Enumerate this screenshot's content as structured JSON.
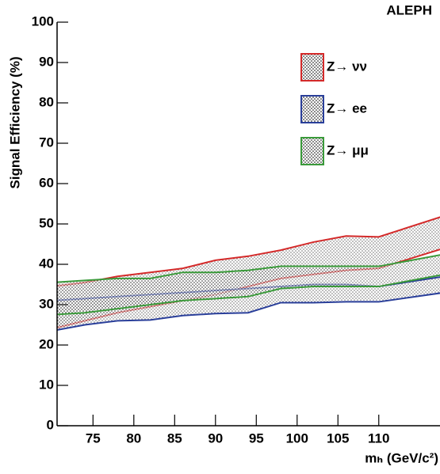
{
  "chart_data": {
    "type": "band",
    "title": "ALEPH",
    "x_label": "mₕ (GeV/c²)",
    "y_label": "Signal Efficiency (%)",
    "x": [
      70,
      74,
      78,
      82,
      86,
      90,
      94,
      98,
      102,
      106,
      110,
      118
    ],
    "series": [
      {
        "name": "Z→ νν",
        "color": "#d42a2a",
        "upper": [
          34.5,
          35.5,
          37,
          38,
          39,
          41,
          42,
          43.5,
          45.5,
          47,
          46.8,
          52
        ],
        "lower": [
          24,
          26,
          28,
          29.5,
          31,
          32.5,
          34.5,
          36.5,
          37.5,
          38.5,
          39,
          44
        ]
      },
      {
        "name": "Z→ ee",
        "color": "#2a3f9a",
        "upper": [
          31,
          31.5,
          32,
          32.5,
          33,
          33.5,
          34,
          34.5,
          35,
          35,
          34.5,
          37
        ],
        "lower": [
          23.5,
          25,
          26,
          26.2,
          27.3,
          27.8,
          28,
          30.5,
          30.5,
          30.7,
          30.7,
          33
        ]
      },
      {
        "name": "Z→ μμ",
        "color": "#3a9a3a",
        "upper": [
          35.5,
          36,
          36.5,
          36.5,
          38,
          38,
          38.5,
          39.5,
          39.5,
          39.5,
          39.5,
          42.5
        ],
        "lower": [
          27.5,
          28,
          29,
          30,
          31,
          31.5,
          32,
          34,
          34.5,
          34.5,
          34.5,
          37.5
        ]
      }
    ],
    "xlim": [
      70.6,
      117.5
    ],
    "ylim": [
      0,
      100
    ],
    "xticks": [
      75,
      80,
      85,
      90,
      95,
      100,
      105,
      110
    ],
    "yticks": [
      0,
      10,
      20,
      30,
      40,
      50,
      60,
      70,
      80,
      90,
      100
    ]
  }
}
